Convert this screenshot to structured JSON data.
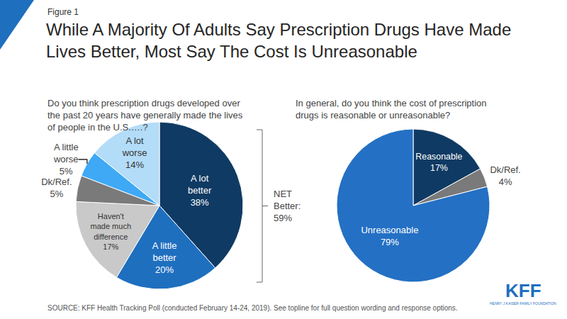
{
  "figure_label": "Figure 1",
  "title": "While A Majority Of Adults Say Prescription Drugs Have Made Lives Better, Most Say The Cost Is Unreasonable",
  "source": "SOURCE: KFF Health Tracking Poll (conducted February 14-24, 2019). See topline for full question wording and response options.",
  "logo": {
    "text": "KFF",
    "subtext": "HENRY J KAISER FAMILY FOUNDATION"
  },
  "chart_data": [
    {
      "type": "pie",
      "subtitle": "Do you think prescription drugs developed over the past 20 years have generally made the lives of people in the U.S.….?",
      "categories": [
        "A lot better",
        "A little better",
        "Haven't made much difference",
        "Dk/Ref.",
        "A little worse",
        "A lot worse"
      ],
      "values": [
        38,
        20,
        17,
        5,
        5,
        14
      ],
      "value_labels": [
        "38%",
        "20%",
        "17%",
        "5%",
        "5%",
        "14%"
      ],
      "colors": [
        "#0f3a63",
        "#1f6fbf",
        "#c9c9c9",
        "#7a7a7a",
        "#3fa9f5",
        "#b3dcf8"
      ],
      "data_labels": true,
      "annotations": [
        "NET Better: 59%"
      ]
    },
    {
      "type": "pie",
      "subtitle": "In general, do you think the cost of prescription drugs is reasonable or unreasonable?",
      "categories": [
        "Reasonable",
        "Dk/Ref.",
        "Unreasonable"
      ],
      "values": [
        17,
        4,
        79
      ],
      "value_labels": [
        "17%",
        "4%",
        "79%"
      ],
      "colors": [
        "#0f3a63",
        "#7a7a7a",
        "#2470c4"
      ],
      "data_labels": true
    }
  ]
}
